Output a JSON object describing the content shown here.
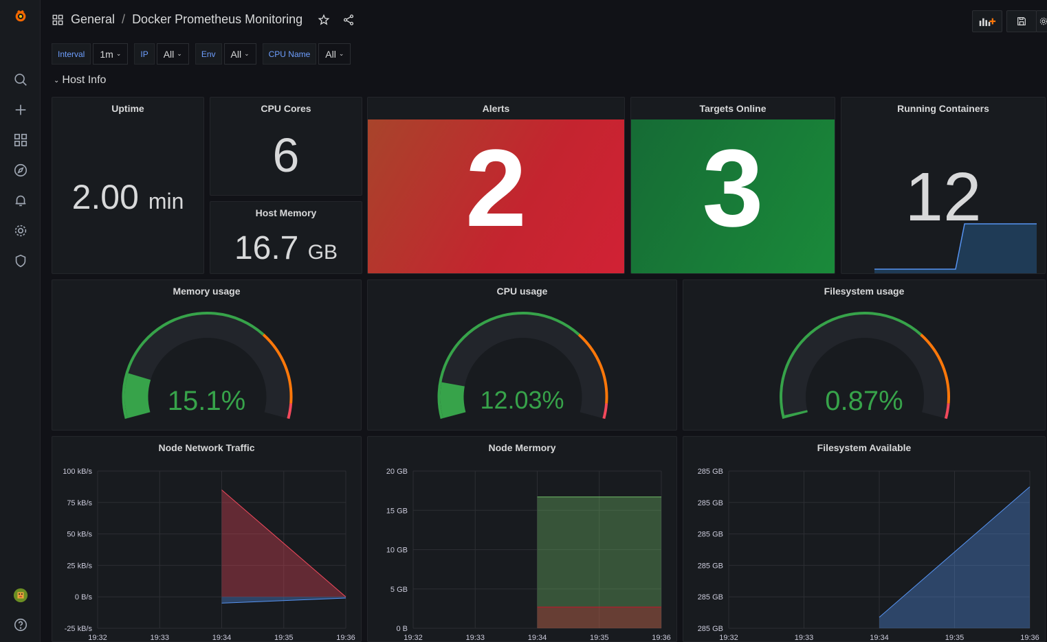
{
  "breadcrumb": {
    "folder": "General",
    "separator": "/",
    "dashboard": "Docker Prometheus Monitoring"
  },
  "variables": [
    {
      "label": "Interval",
      "value": "1m"
    },
    {
      "label": "IP",
      "value": "All"
    },
    {
      "label": "Env",
      "value": "All"
    },
    {
      "label": "CPU Name",
      "value": "All"
    }
  ],
  "row": {
    "title": "Host Info"
  },
  "panels": {
    "uptime": {
      "title": "Uptime",
      "value": "2.00",
      "unit": "min"
    },
    "cpu_cores": {
      "title": "CPU Cores",
      "value": "6"
    },
    "host_memory": {
      "title": "Host Memory",
      "value": "16.7",
      "unit": "GB"
    },
    "alerts": {
      "title": "Alerts",
      "value": "2",
      "color": "#c4242f"
    },
    "targets_online": {
      "title": "Targets Online",
      "value": "3",
      "color": "#1a7f37"
    },
    "running_containers": {
      "title": "Running Containers",
      "value": "12",
      "sparkline": [
        0,
        0,
        0,
        0,
        0,
        0,
        0,
        0,
        0,
        0,
        1,
        1,
        1,
        1,
        1,
        1,
        1,
        1,
        1
      ]
    },
    "memory_usage": {
      "title": "Memory usage",
      "value": "15.1%",
      "percent": 15.1
    },
    "cpu_usage": {
      "title": "CPU usage",
      "value": "12.03%",
      "percent": 12.03
    },
    "filesystem_usage": {
      "title": "Filesystem usage",
      "value": "0.87%",
      "percent": 0.87
    }
  },
  "chart_data": [
    {
      "type": "area",
      "title": "Node Network Traffic",
      "x": [
        "19:32",
        "19:33",
        "19:34",
        "19:35",
        "19:36"
      ],
      "yticks": [
        "100 kB/s",
        "75 kB/s",
        "50 kB/s",
        "25 kB/s",
        "0 B/s",
        "-25 kB/s"
      ],
      "ylim": [
        -25,
        100
      ],
      "series": [
        {
          "color": "#f2495c",
          "points": [
            [
              "19:34",
              85
            ],
            [
              "19:36",
              0
            ]
          ]
        },
        {
          "color": "#5794f2",
          "points": [
            [
              "19:34",
              -5
            ],
            [
              "19:36",
              -1
            ]
          ]
        }
      ]
    },
    {
      "type": "area",
      "title": "Node Mermory",
      "x": [
        "19:32",
        "19:33",
        "19:34",
        "19:35",
        "19:36"
      ],
      "yticks": [
        "20 GB",
        "15 GB",
        "10 GB",
        "5 GB",
        "0 B"
      ],
      "ylim": [
        0,
        20
      ],
      "series": [
        {
          "color": "#73bf69",
          "points": [
            [
              "19:34",
              16.7
            ],
            [
              "19:36",
              16.7
            ]
          ]
        },
        {
          "color": "#c4162a",
          "points": [
            [
              "19:34",
              2.7
            ],
            [
              "19:36",
              2.7
            ]
          ]
        }
      ]
    },
    {
      "type": "area",
      "title": "Filesystem Available",
      "x": [
        "19:32",
        "19:33",
        "19:34",
        "19:35",
        "19:36"
      ],
      "yticks": [
        "285 GB",
        "285 GB",
        "285 GB",
        "285 GB",
        "285 GB",
        "285 GB"
      ],
      "ylim": [
        0,
        1
      ],
      "series": [
        {
          "color": "#5794f2",
          "points": [
            [
              "19:34",
              0.07
            ],
            [
              "19:36",
              0.9
            ]
          ]
        }
      ]
    }
  ],
  "colors": {
    "green": "#37a34a",
    "orange": "#ff780a",
    "red": "#f2495c",
    "blue": "#5794f2"
  }
}
